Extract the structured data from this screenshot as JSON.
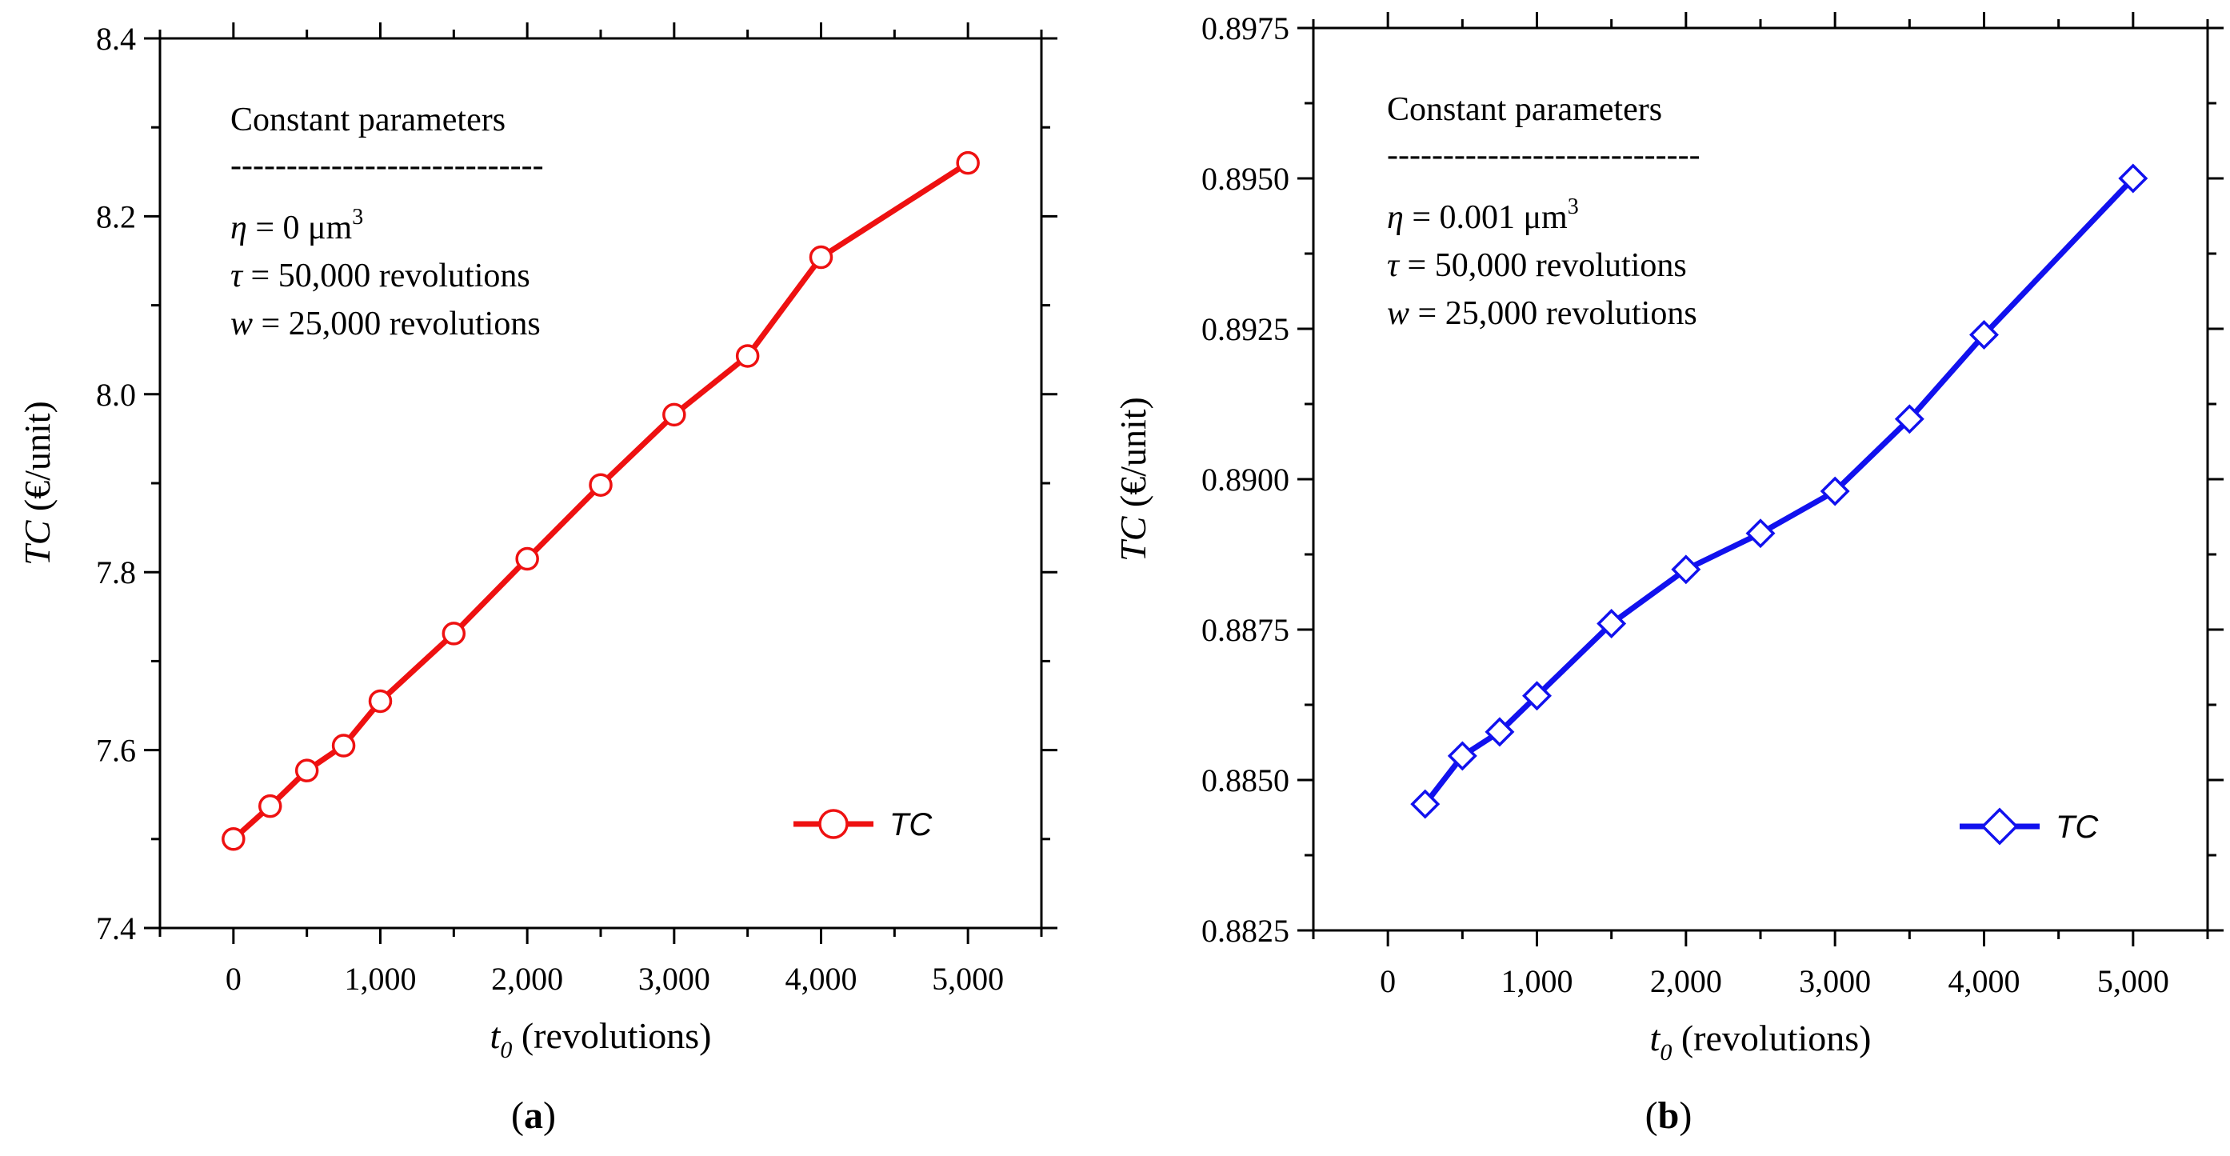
{
  "chart_data": [
    {
      "type": "line",
      "panel_label": "a",
      "xlabel": {
        "main": "t",
        "subscript": "0",
        "rest": " (revolutions)"
      },
      "ylabel": {
        "main": "TC",
        "rest": " (€/unit)"
      },
      "xlim": [
        -500,
        5500
      ],
      "ylim": [
        7.4,
        8.4
      ],
      "xticks": [
        0,
        1000,
        2000,
        3000,
        4000,
        5000
      ],
      "xtick_labels": [
        "0",
        "1,000",
        "2,000",
        "3,000",
        "4,000",
        "5,000"
      ],
      "yticks": [
        7.4,
        7.6,
        7.8,
        8.0,
        8.2,
        8.4
      ],
      "ytick_labels": [
        "7.4",
        "7.6",
        "7.8",
        "8.0",
        "8.2",
        "8.4"
      ],
      "legend_position": "bottom-right",
      "series": [
        {
          "name": "TC",
          "color": "#ee1111",
          "marker": "circle",
          "x": [
            0,
            250,
            500,
            750,
            1000,
            1500,
            2000,
            2500,
            3000,
            3500,
            4000,
            5000
          ],
          "y": [
            7.5,
            7.537,
            7.577,
            7.605,
            7.655,
            7.731,
            7.815,
            7.898,
            7.977,
            8.043,
            8.154,
            8.26
          ]
        }
      ],
      "annotation": {
        "heading": "Constant parameters",
        "divider": "----------------------------",
        "line1_sym": "η",
        "line1_text": " = 0 μm",
        "line1_sup": "3",
        "line2_sym": "τ",
        "line2_text": " = 50,000 revolutions",
        "line3_sym": "w",
        "line3_text": " = 25,000 revolutions"
      }
    },
    {
      "type": "line",
      "panel_label": "b",
      "xlabel": {
        "main": "t",
        "subscript": "0",
        "rest": " (revolutions)"
      },
      "ylabel": {
        "main": "TC",
        "rest": " (€/unit)"
      },
      "xlim": [
        -500,
        5500
      ],
      "ylim": [
        0.8825,
        0.8975
      ],
      "xticks": [
        0,
        1000,
        2000,
        3000,
        4000,
        5000
      ],
      "xtick_labels": [
        "0",
        "1,000",
        "2,000",
        "3,000",
        "4,000",
        "5,000"
      ],
      "yticks": [
        0.8825,
        0.885,
        0.8875,
        0.89,
        0.8925,
        0.895,
        0.8975
      ],
      "ytick_labels": [
        "0.8825",
        "0.8850",
        "0.8875",
        "0.8900",
        "0.8925",
        "0.8950",
        "0.8975"
      ],
      "legend_position": "bottom-right",
      "series": [
        {
          "name": "TC",
          "color": "#1111ee",
          "marker": "diamond",
          "x": [
            250,
            500,
            750,
            1000,
            1500,
            2000,
            2500,
            3000,
            3500,
            4000,
            5000
          ],
          "y": [
            0.8846,
            0.8854,
            0.8858,
            0.8864,
            0.8876,
            0.8885,
            0.8891,
            0.8898,
            0.891,
            0.8924,
            0.895
          ]
        }
      ],
      "annotation": {
        "heading": "Constant parameters",
        "divider": "----------------------------",
        "line1_sym": "η",
        "line1_text": " = 0.001 μm",
        "line1_sup": "3",
        "line2_sym": "τ",
        "line2_text": " = 50,000 revolutions",
        "line3_sym": "w",
        "line3_text": " = 25,000 revolutions"
      }
    }
  ]
}
